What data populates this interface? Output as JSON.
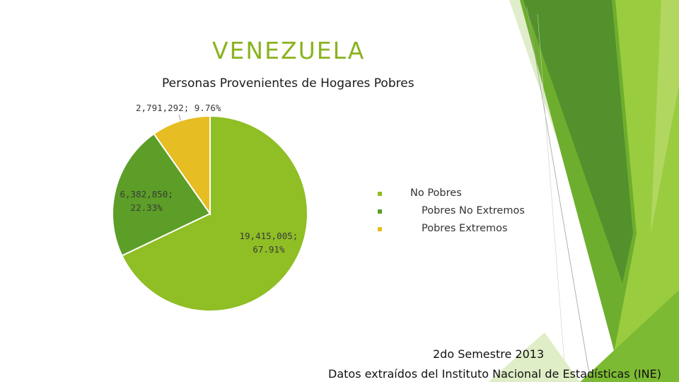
{
  "slide": {
    "title": "VENEZUELA",
    "footer_line1": "2do Semestre 2013",
    "footer_line2": "Datos extraídos del Instituto Nacional de Estadísticas (INE)"
  },
  "colors": {
    "title": "#8ab31f",
    "no_pobres": "#8fbe25",
    "pobres_no_extremos": "#5c9e27",
    "pobres_extremos": "#e6bd22",
    "deco_dark": "#4e8c2b",
    "deco_mid": "#6eae2e",
    "deco_light": "#9acc3f",
    "deco_pale": "#d3e6b3"
  },
  "chart_data": {
    "type": "pie",
    "title": "Personas Provenientes de Hogares Pobres",
    "slices": [
      {
        "name": "No Pobres",
        "value": 19415005,
        "percent": 67.91,
        "label": "19,415,005;\n67.91%"
      },
      {
        "name": "Pobres No Extremos",
        "value": 6382850,
        "percent": 22.33,
        "label": "6,382,850;\n22.33%"
      },
      {
        "name": "Pobres Extremos",
        "value": 2791292,
        "percent": 9.76,
        "label": "2,791,292; 9.76%"
      }
    ],
    "legend": [
      "No Pobres",
      "Pobres No Extremos",
      "Pobres Extremos"
    ],
    "legend_position": "right"
  }
}
